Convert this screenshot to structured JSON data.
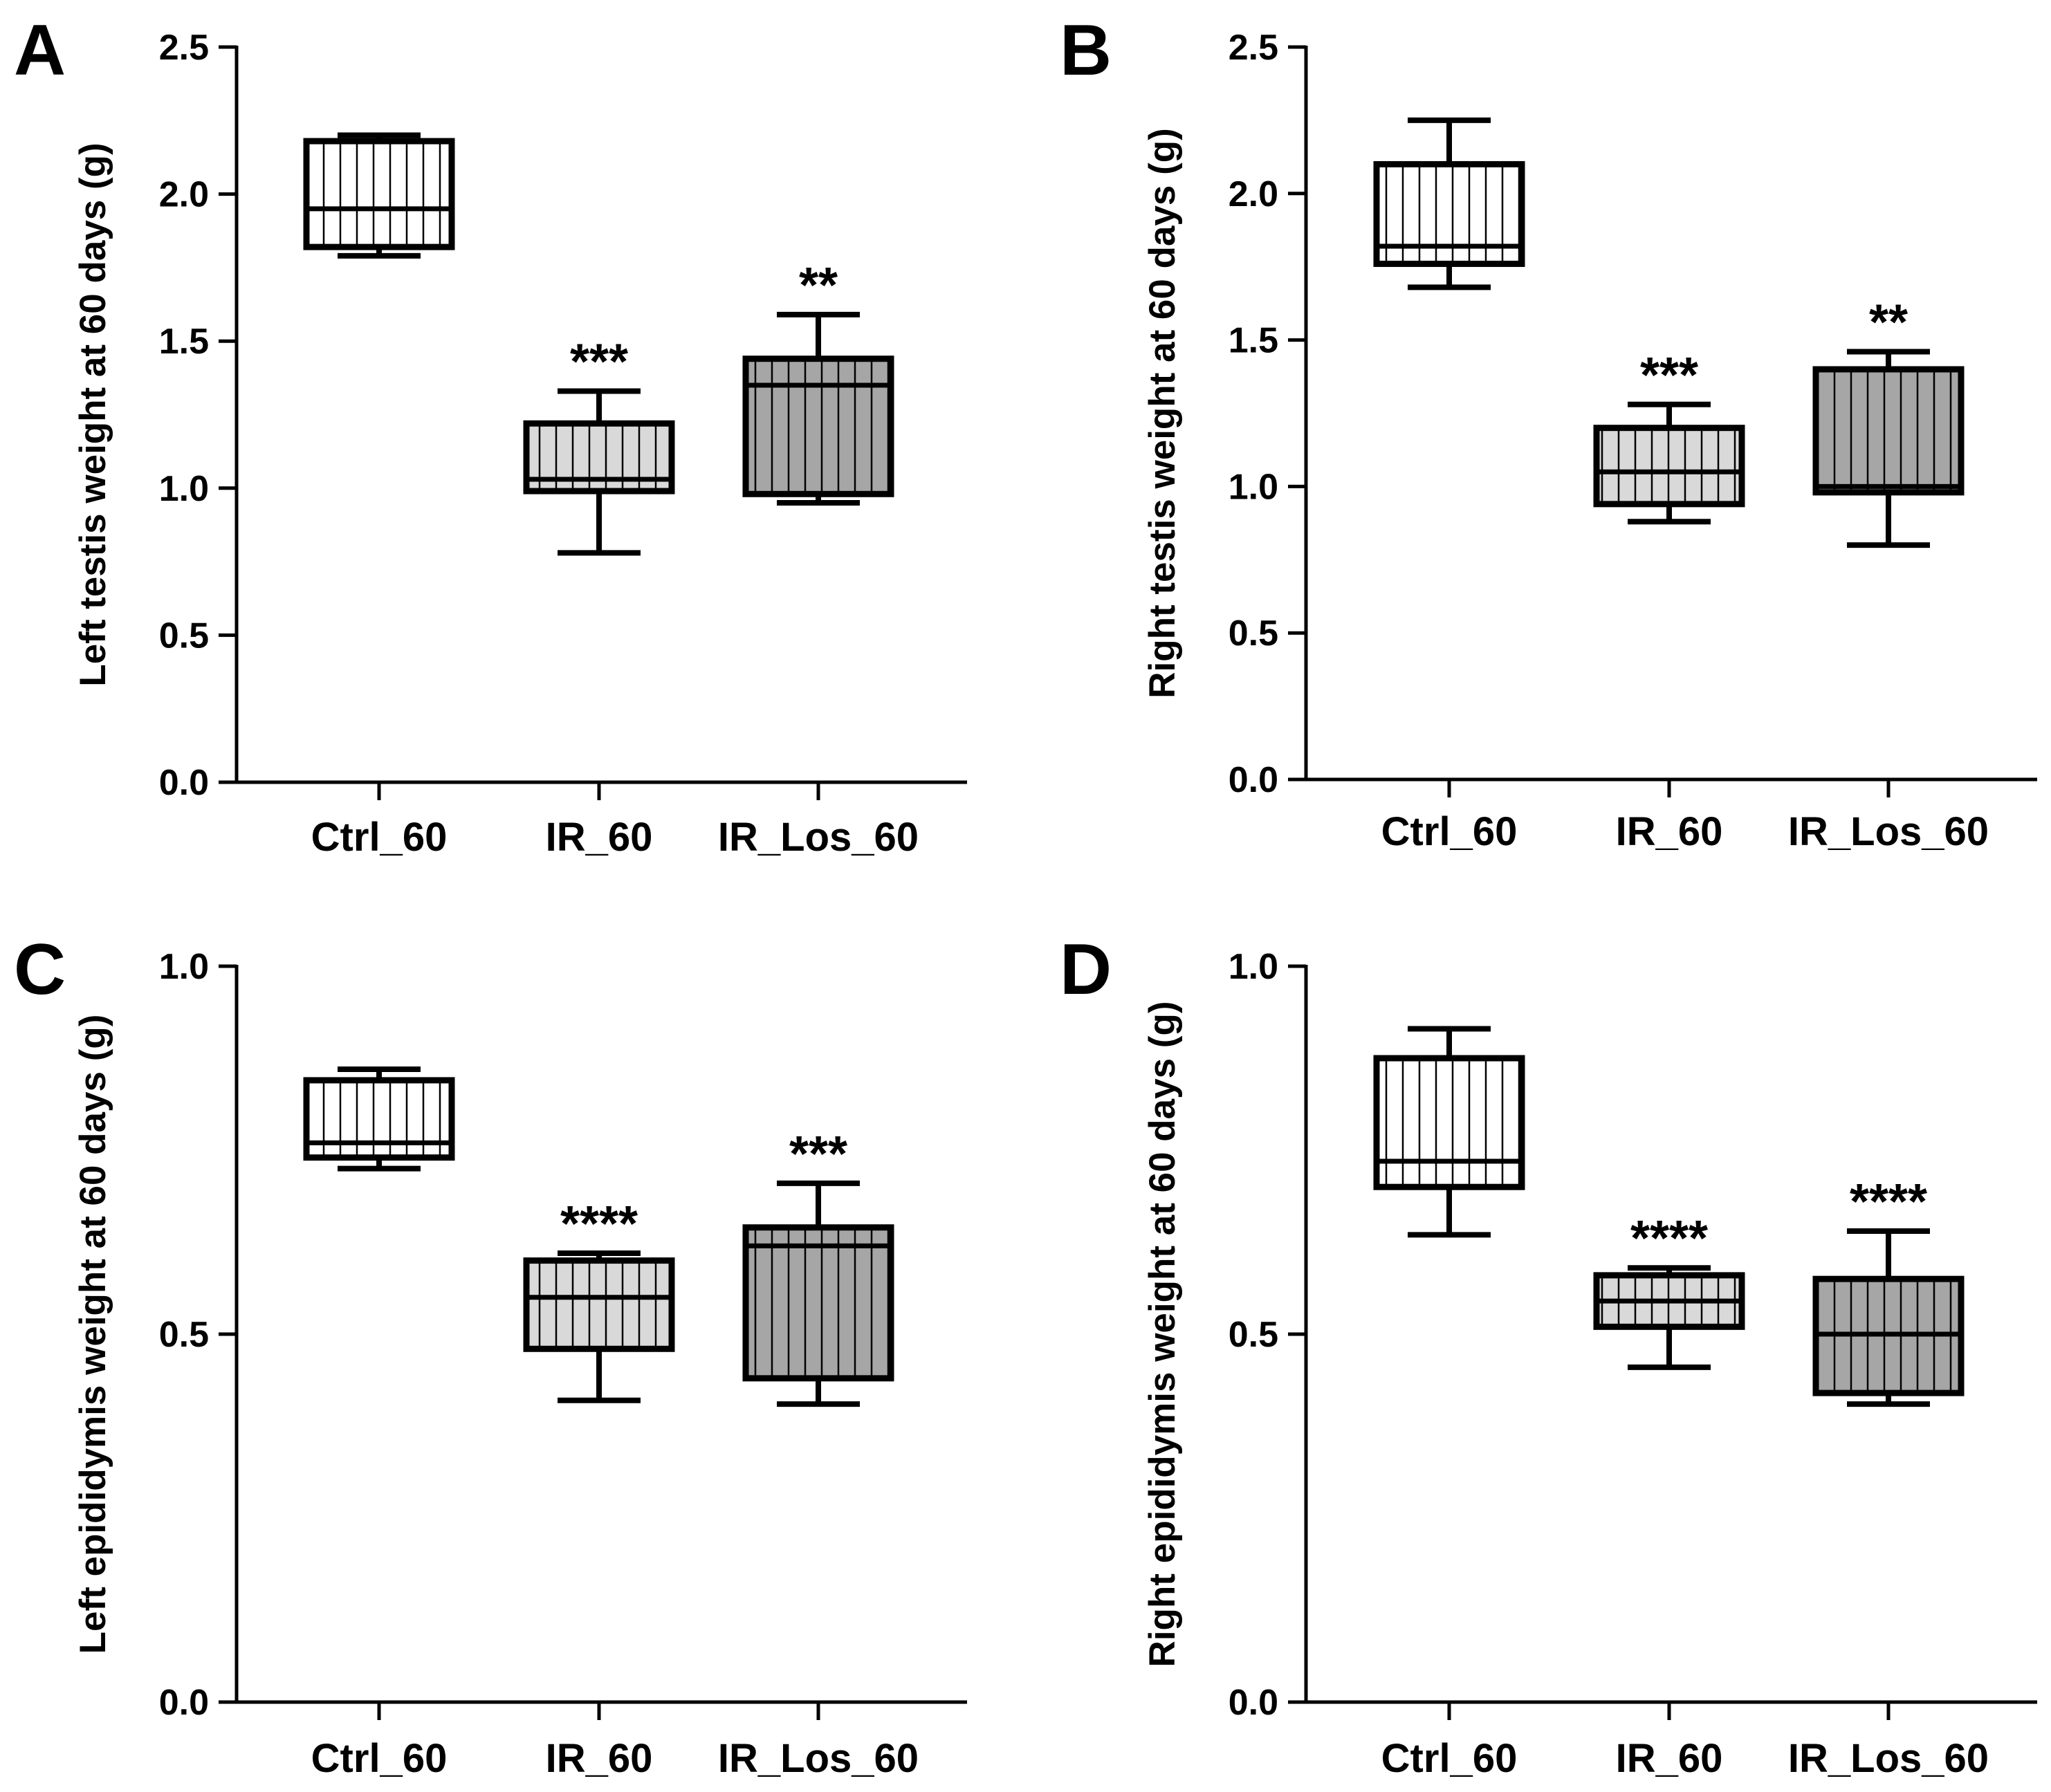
{
  "colors": {
    "ctrl_fill": "#ffffff",
    "ir_fill": "#d9d9d9",
    "ir_los_fill": "#a6a6a6",
    "line": "#000000"
  },
  "chart_data": [
    {
      "panel": "A",
      "type": "box",
      "ylabel": "Left testis weight at 60 days (g)",
      "ylim": [
        0,
        2.5
      ],
      "yticks": [
        "0.0",
        "0.5",
        "1.0",
        "1.5",
        "2.0",
        "2.5"
      ],
      "categories": [
        "Ctrl_60",
        "IR_60",
        "IR_Los_60"
      ],
      "series": [
        {
          "name": "Ctrl_60",
          "min": 1.79,
          "q1": 1.82,
          "median": 1.95,
          "q3": 2.18,
          "max": 2.2,
          "sig": ""
        },
        {
          "name": "IR_60",
          "min": 0.78,
          "q1": 0.99,
          "median": 1.03,
          "q3": 1.22,
          "max": 1.33,
          "sig": "***"
        },
        {
          "name": "IR_Los_60",
          "min": 0.95,
          "q1": 0.98,
          "median": 1.35,
          "q3": 1.44,
          "max": 1.59,
          "sig": "**"
        }
      ]
    },
    {
      "panel": "B",
      "type": "box",
      "ylabel": "Right testis weight at 60 days (g)",
      "ylim": [
        0,
        2.5
      ],
      "yticks": [
        "0.0",
        "0.5",
        "1.0",
        "1.5",
        "2.0",
        "2.5"
      ],
      "categories": [
        "Ctrl_60",
        "IR_60",
        "IR_Los_60"
      ],
      "series": [
        {
          "name": "Ctrl_60",
          "min": 1.68,
          "q1": 1.76,
          "median": 1.82,
          "q3": 2.1,
          "max": 2.25,
          "sig": ""
        },
        {
          "name": "IR_60",
          "min": 0.88,
          "q1": 0.94,
          "median": 1.05,
          "q3": 1.2,
          "max": 1.28,
          "sig": "***"
        },
        {
          "name": "IR_Los_60",
          "min": 0.8,
          "q1": 0.98,
          "median": 1.0,
          "q3": 1.4,
          "max": 1.46,
          "sig": "**"
        }
      ]
    },
    {
      "panel": "C",
      "type": "box",
      "ylabel": "Left epididymis weight at 60 days (g)",
      "ylim": [
        0,
        1.0
      ],
      "yticks": [
        "0.0",
        "0.5",
        "1.0"
      ],
      "categories": [
        "Ctrl_60",
        "IR_60",
        "IR_Los_60"
      ],
      "series": [
        {
          "name": "Ctrl_60",
          "min": 0.725,
          "q1": 0.74,
          "median": 0.76,
          "q3": 0.845,
          "max": 0.86,
          "sig": ""
        },
        {
          "name": "IR_60",
          "min": 0.41,
          "q1": 0.48,
          "median": 0.55,
          "q3": 0.6,
          "max": 0.61,
          "sig": "****"
        },
        {
          "name": "IR_Los_60",
          "min": 0.405,
          "q1": 0.44,
          "median": 0.62,
          "q3": 0.645,
          "max": 0.705,
          "sig": "***"
        }
      ]
    },
    {
      "panel": "D",
      "type": "box",
      "ylabel": "Right epididymis weight at 60 days (g)",
      "ylim": [
        0,
        1.0
      ],
      "yticks": [
        "0.0",
        "0.5",
        "1.0"
      ],
      "categories": [
        "Ctrl_60",
        "IR_60",
        "IR_Los_60"
      ],
      "series": [
        {
          "name": "Ctrl_60",
          "min": 0.635,
          "q1": 0.7,
          "median": 0.735,
          "q3": 0.875,
          "max": 0.915,
          "sig": ""
        },
        {
          "name": "IR_60",
          "min": 0.455,
          "q1": 0.51,
          "median": 0.545,
          "q3": 0.58,
          "max": 0.59,
          "sig": "****"
        },
        {
          "name": "IR_Los_60",
          "min": 0.405,
          "q1": 0.42,
          "median": 0.5,
          "q3": 0.575,
          "max": 0.64,
          "sig": "****"
        }
      ]
    }
  ]
}
